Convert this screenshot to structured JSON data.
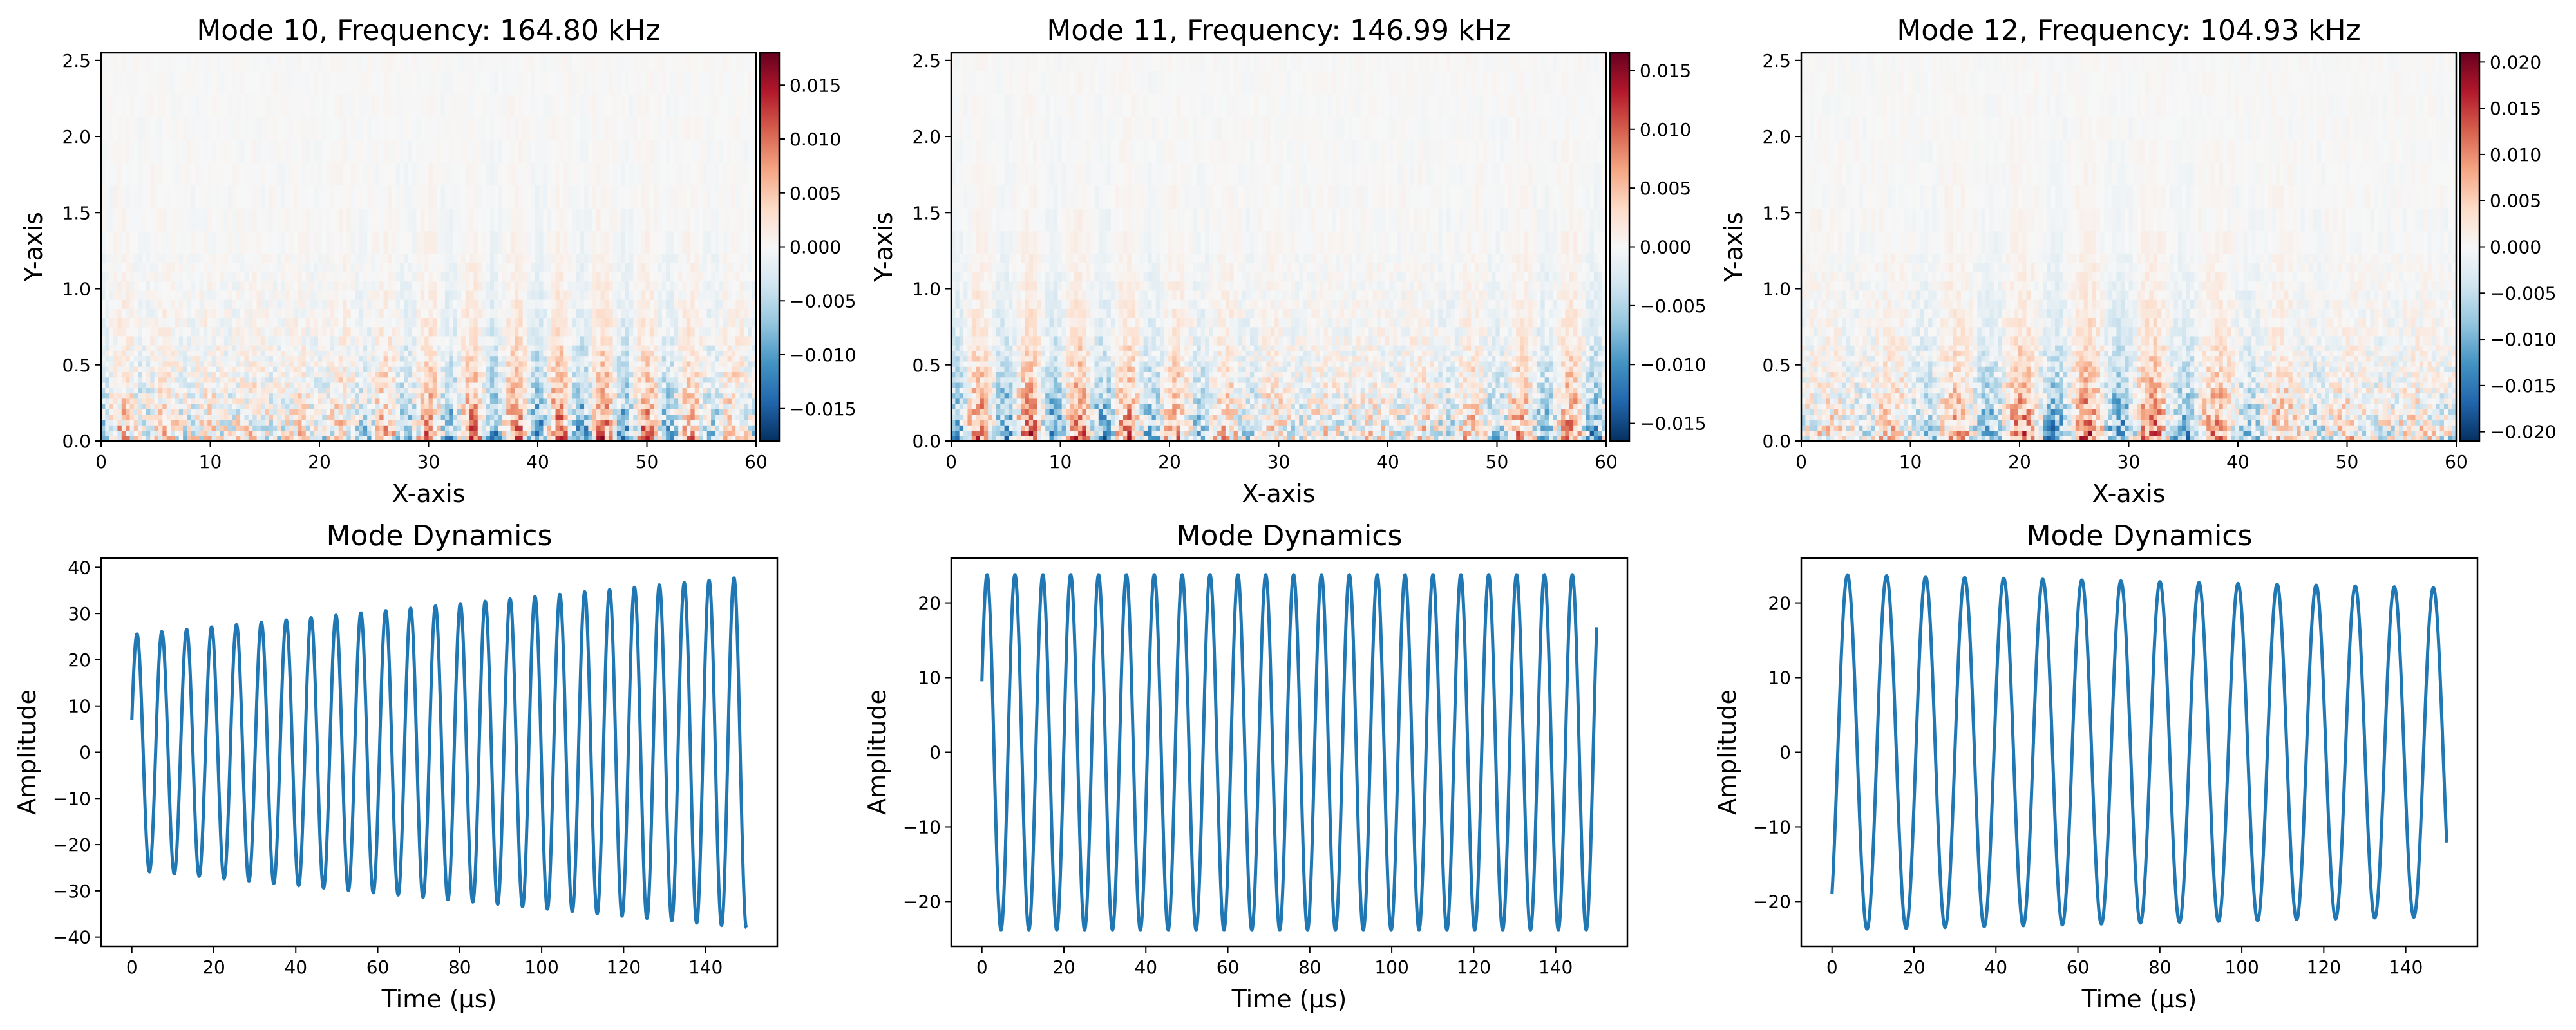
{
  "colormap": [
    "#053061",
    "#2166ac",
    "#4393c3",
    "#92c5de",
    "#d1e5f0",
    "#f7f7f7",
    "#fddbc7",
    "#f4a582",
    "#d6604d",
    "#b2182b",
    "#67001f"
  ],
  "line_color": "#1f77b4",
  "chart_data": [
    {
      "type": "heatmap",
      "title": "Mode 10, Frequency: 164.80 kHz",
      "xlabel": "X-axis",
      "ylabel": "Y-axis",
      "xlim": [
        0,
        60
      ],
      "ylim": [
        0,
        2.55
      ],
      "xticks": [
        "0",
        "10",
        "20",
        "30",
        "40",
        "50",
        "60"
      ],
      "yticks": [
        "0.0",
        "0.5",
        "1.0",
        "1.5",
        "2.0",
        "2.5"
      ],
      "colorbar": {
        "vmin": -0.018,
        "vmax": 0.018,
        "ticks": [
          "0.015",
          "0.010",
          "0.005",
          "0.000",
          "−0.005",
          "−0.010",
          "−0.015"
        ],
        "tick_values": [
          0.015,
          0.01,
          0.005,
          0.0,
          -0.005,
          -0.01,
          -0.015
        ]
      },
      "stripe_period": 4.0,
      "seed": 11
    },
    {
      "type": "heatmap",
      "title": "Mode 11, Frequency: 146.99 kHz",
      "xlabel": "X-axis",
      "ylabel": "Y-axis",
      "xlim": [
        0,
        60
      ],
      "ylim": [
        0,
        2.55
      ],
      "xticks": [
        "0",
        "10",
        "20",
        "30",
        "40",
        "50",
        "60"
      ],
      "yticks": [
        "0.0",
        "0.5",
        "1.0",
        "1.5",
        "2.0",
        "2.5"
      ],
      "colorbar": {
        "vmin": -0.0165,
        "vmax": 0.0165,
        "ticks": [
          "0.015",
          "0.010",
          "0.005",
          "0.000",
          "−0.005",
          "−0.010",
          "−0.015"
        ],
        "tick_values": [
          0.015,
          0.01,
          0.005,
          0.0,
          -0.005,
          -0.01,
          -0.015
        ]
      },
      "stripe_period": 4.5,
      "seed": 23
    },
    {
      "type": "heatmap",
      "title": "Mode 12, Frequency: 104.93 kHz",
      "xlabel": "X-axis",
      "ylabel": "Y-axis",
      "xlim": [
        0,
        60
      ],
      "ylim": [
        0,
        2.55
      ],
      "xticks": [
        "0",
        "10",
        "20",
        "30",
        "40",
        "50",
        "60"
      ],
      "yticks": [
        "0.0",
        "0.5",
        "1.0",
        "1.5",
        "2.0",
        "2.5"
      ],
      "colorbar": {
        "vmin": -0.021,
        "vmax": 0.021,
        "ticks": [
          "0.020",
          "0.015",
          "0.010",
          "0.005",
          "0.000",
          "−0.005",
          "−0.010",
          "−0.015",
          "−0.020"
        ],
        "tick_values": [
          0.02,
          0.015,
          0.01,
          0.005,
          0.0,
          -0.005,
          -0.01,
          -0.015,
          -0.02
        ]
      },
      "stripe_period": 6.0,
      "seed": 37
    },
    {
      "type": "line",
      "title": "Mode Dynamics",
      "xlabel": "Time (μs)",
      "ylabel": "Amplitude",
      "xlim": [
        -7.5,
        157.5
      ],
      "ylim": [
        -42,
        42
      ],
      "xticks": [
        0,
        20,
        40,
        60,
        80,
        100,
        120,
        140
      ],
      "yticks": [
        -40,
        -30,
        -20,
        -10,
        0,
        10,
        20,
        30,
        40
      ],
      "ytick_labels": [
        "−40",
        "−30",
        "−20",
        "−10",
        "0",
        "10",
        "20",
        "30",
        "40"
      ],
      "series": [
        {
          "t_start": 0,
          "t_end": 150,
          "period_us": 6.07,
          "amplitude_start": 25.5,
          "amplitude_end": 38.0,
          "initial_value": 7,
          "final_value": -38
        }
      ]
    },
    {
      "type": "line",
      "title": "Mode Dynamics",
      "xlabel": "Time (μs)",
      "ylabel": "Amplitude",
      "xlim": [
        -7.5,
        157.5
      ],
      "ylim": [
        -26,
        26
      ],
      "xticks": [
        0,
        20,
        40,
        60,
        80,
        100,
        120,
        140
      ],
      "yticks": [
        -20,
        -10,
        0,
        10,
        20
      ],
      "ytick_labels": [
        "−20",
        "−10",
        "0",
        "10",
        "20"
      ],
      "series": [
        {
          "t_start": 0,
          "t_end": 150,
          "period_us": 6.8,
          "amplitude_start": 23.8,
          "amplitude_end": 23.8,
          "initial_value": 9.5,
          "final_value": 15.5
        }
      ]
    },
    {
      "type": "line",
      "title": "Mode Dynamics",
      "xlabel": "Time (μs)",
      "ylabel": "Amplitude",
      "xlim": [
        -7.5,
        157.5
      ],
      "ylim": [
        -26,
        26
      ],
      "xticks": [
        0,
        20,
        40,
        60,
        80,
        100,
        120,
        140
      ],
      "yticks": [
        -20,
        -10,
        0,
        10,
        20
      ],
      "ytick_labels": [
        "−20",
        "−10",
        "0",
        "10",
        "20"
      ],
      "series": [
        {
          "t_start": 0,
          "t_end": 150,
          "period_us": 9.53,
          "amplitude_start": 23.8,
          "amplitude_end": 22.0,
          "initial_value": -19,
          "final_value": -12
        }
      ]
    }
  ]
}
